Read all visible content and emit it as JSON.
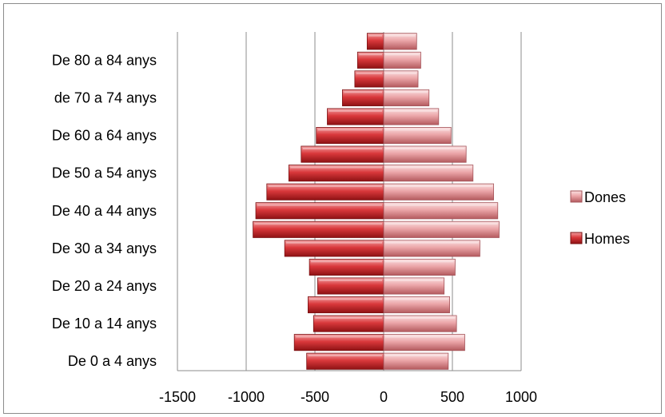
{
  "chart_data": {
    "type": "bar",
    "orientation": "horizontal",
    "stacked": true,
    "categories": [
      "De 0 a 4 anys",
      "",
      "De 10 a 14 anys",
      "",
      "De 20 a 24 anys",
      "",
      "De 30 a 34 anys",
      "",
      "De 40 a 44 anys",
      "",
      "De 50 a 54 anys",
      "",
      "De 60 a 64 anys",
      "",
      "de 70 a 74 anys",
      "",
      "De 80 a 84 anys",
      ""
    ],
    "series": [
      {
        "name": "Homes",
        "color": "#c0292b",
        "values": [
          -560,
          -650,
          -510,
          -550,
          -480,
          -540,
          -720,
          -950,
          -930,
          -850,
          -690,
          -600,
          -490,
          -410,
          -300,
          -210,
          -190,
          -120
        ]
      },
      {
        "name": "Dones",
        "color": "#e8969a",
        "values": [
          470,
          590,
          530,
          480,
          440,
          520,
          700,
          840,
          830,
          800,
          650,
          600,
          490,
          400,
          330,
          250,
          270,
          240
        ]
      }
    ],
    "xlim": [
      -1500,
      1000
    ],
    "xticks": [
      "-1500",
      "-1000",
      "-500",
      "0",
      "500",
      "1000"
    ],
    "xtick_values": [
      -1500,
      -1000,
      -500,
      0,
      500,
      1000
    ],
    "grid": "vertical",
    "legend": {
      "position": "right",
      "entries": [
        "Dones",
        "Homes"
      ]
    },
    "title": "",
    "xlabel": "",
    "ylabel": ""
  }
}
